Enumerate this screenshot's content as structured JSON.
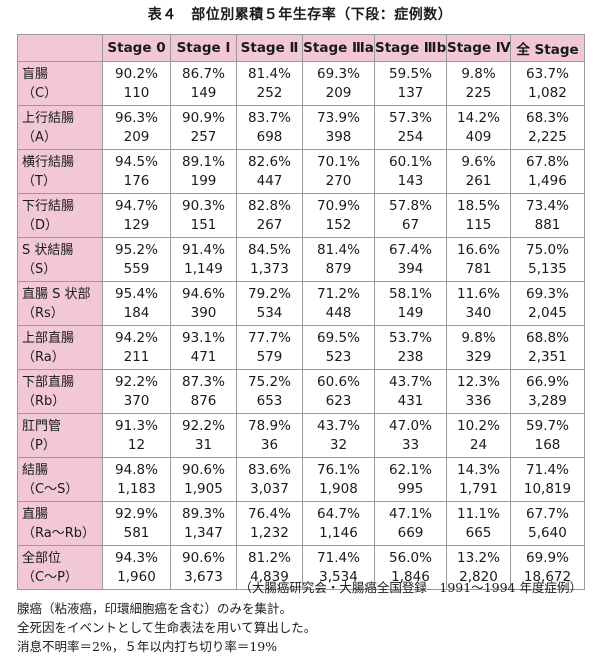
{
  "title": "表４　部位別累積５年生存率（下段：症例数）",
  "headers": [
    "",
    "Stage 0",
    "Stage Ⅰ",
    "Stage Ⅱ",
    "Stage Ⅲa",
    "Stage Ⅲb",
    "Stage Ⅳ",
    "全 Stage"
  ],
  "rows": [
    {
      "site": "盲腸",
      "code": "（C）",
      "rates": [
        "90.2%",
        "86.7%",
        "81.4%",
        "69.3%",
        "59.5%",
        "9.8%",
        "63.7%"
      ],
      "cases": [
        "110",
        "149",
        "252",
        "209",
        "137",
        "225",
        "1,082"
      ]
    },
    {
      "site": "上行結腸",
      "code": "（A）",
      "rates": [
        "96.3%",
        "90.9%",
        "83.7%",
        "73.9%",
        "57.3%",
        "14.2%",
        "68.3%"
      ],
      "cases": [
        "209",
        "257",
        "698",
        "398",
        "254",
        "409",
        "2,225"
      ]
    },
    {
      "site": "横行結腸",
      "code": "（T）",
      "rates": [
        "94.5%",
        "89.1%",
        "82.6%",
        "70.1%",
        "60.1%",
        "9.6%",
        "67.8%"
      ],
      "cases": [
        "176",
        "199",
        "447",
        "270",
        "143",
        "261",
        "1,496"
      ]
    },
    {
      "site": "下行結腸",
      "code": "（D）",
      "rates": [
        "94.7%",
        "90.3%",
        "82.8%",
        "70.9%",
        "57.8%",
        "18.5%",
        "73.4%"
      ],
      "cases": [
        "129",
        "151",
        "267",
        "152",
        "67",
        "115",
        "881"
      ]
    },
    {
      "site": "S 状結腸",
      "code": "（S）",
      "rates": [
        "95.2%",
        "91.4%",
        "84.5%",
        "81.4%",
        "67.4%",
        "16.6%",
        "75.0%"
      ],
      "cases": [
        "559",
        "1,149",
        "1,373",
        "879",
        "394",
        "781",
        "5,135"
      ]
    },
    {
      "site": "直腸 S 状部",
      "code": "（Rs）",
      "rates": [
        "95.4%",
        "94.6%",
        "79.2%",
        "71.2%",
        "58.1%",
        "11.6%",
        "69.3%"
      ],
      "cases": [
        "184",
        "390",
        "534",
        "448",
        "149",
        "340",
        "2,045"
      ]
    },
    {
      "site": "上部直腸",
      "code": "（Ra）",
      "rates": [
        "94.2%",
        "93.1%",
        "77.7%",
        "69.5%",
        "53.7%",
        "9.8%",
        "68.8%"
      ],
      "cases": [
        "211",
        "471",
        "579",
        "523",
        "238",
        "329",
        "2,351"
      ]
    },
    {
      "site": "下部直腸",
      "code": "（Rb）",
      "rates": [
        "92.2%",
        "87.3%",
        "75.2%",
        "60.6%",
        "43.7%",
        "12.3%",
        "66.9%"
      ],
      "cases": [
        "370",
        "876",
        "653",
        "623",
        "431",
        "336",
        "3,289"
      ]
    },
    {
      "site": "肛門管",
      "code": "（P）",
      "rates": [
        "91.3%",
        "92.2%",
        "78.9%",
        "43.7%",
        "47.0%",
        "10.2%",
        "59.7%"
      ],
      "cases": [
        "12",
        "31",
        "36",
        "32",
        "33",
        "24",
        "168"
      ]
    },
    {
      "site": "結腸",
      "code": "（C～S）",
      "rates": [
        "94.8%",
        "90.6%",
        "83.6%",
        "76.1%",
        "62.1%",
        "14.3%",
        "71.4%"
      ],
      "cases": [
        "1,183",
        "1,905",
        "3,037",
        "1,908",
        "995",
        "1,791",
        "10,819"
      ]
    },
    {
      "site": "直腸",
      "code": "（Ra～Rb）",
      "rates": [
        "92.9%",
        "89.3%",
        "76.4%",
        "64.7%",
        "47.1%",
        "11.1%",
        "67.7%"
      ],
      "cases": [
        "581",
        "1,347",
        "1,232",
        "1,146",
        "669",
        "665",
        "5,640"
      ]
    },
    {
      "site": "全部位",
      "code": "（C～P）",
      "rates": [
        "94.3%",
        "90.6%",
        "81.2%",
        "71.4%",
        "56.0%",
        "13.2%",
        "69.9%"
      ],
      "cases": [
        "1,960",
        "3,673",
        "4,839",
        "3,534",
        "1,846",
        "2,820",
        "18,672"
      ]
    }
  ],
  "source": "（大腸癌研究会・大腸癌全国登録　1991～1994 年度症例）",
  "notes": [
    "腺癌（粘液癌，印環細胞癌を含む）のみを集計。",
    "全死因をイベントとして生命表法を用いて算出した。",
    "消息不明率＝2%，５年以内打ち切り率＝19%"
  ]
}
